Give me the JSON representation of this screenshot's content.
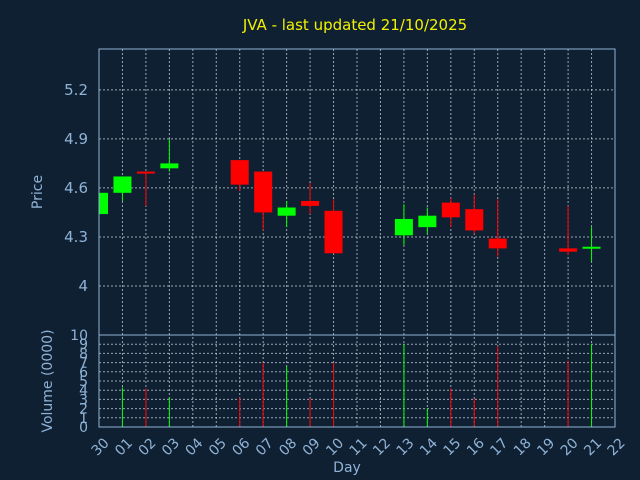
{
  "chart_data": {
    "type": "candlestick",
    "title": "JVA - last updated 21/10/2025",
    "xlabel": "Day",
    "ylabel": "Price",
    "volume_label": "Volume (0000)",
    "x_ticks": [
      "30",
      "01",
      "02",
      "03",
      "04",
      "05",
      "06",
      "07",
      "08",
      "09",
      "10",
      "11",
      "12",
      "13",
      "14",
      "15",
      "16",
      "17",
      "18",
      "19",
      "20",
      "21",
      "22"
    ],
    "price_ylim": [
      3.7,
      5.45
    ],
    "price_ticks": [
      "4",
      "4.3",
      "4.6",
      "4.9",
      "5.2"
    ],
    "volume_ylim": [
      0,
      10
    ],
    "volume_ticks": [
      "0",
      "1",
      "2",
      "3",
      "4",
      "5",
      "6",
      "7",
      "8",
      "9",
      "10"
    ],
    "up_color": "#00ff00",
    "down_color": "#ff0000",
    "grid": true,
    "candles": [
      {
        "day": "30",
        "open": 4.44,
        "close": 4.57,
        "high": 4.57,
        "low": 4.44,
        "volume": 0
      },
      {
        "day": "01",
        "open": 4.57,
        "close": 4.67,
        "high": 4.67,
        "low": 4.52,
        "volume": 4.3
      },
      {
        "day": "02",
        "open": 4.7,
        "close": 4.69,
        "high": 4.7,
        "low": 4.49,
        "volume": 4.2
      },
      {
        "day": "03",
        "open": 4.72,
        "close": 4.75,
        "high": 4.9,
        "low": 4.7,
        "volume": 3.2
      },
      {
        "day": "06",
        "open": 4.77,
        "close": 4.62,
        "high": 4.77,
        "low": 4.58,
        "volume": 3.2
      },
      {
        "day": "07",
        "open": 4.7,
        "close": 4.45,
        "high": 4.7,
        "low": 4.34,
        "volume": 7.0
      },
      {
        "day": "08",
        "open": 4.43,
        "close": 4.48,
        "high": 4.52,
        "low": 4.36,
        "volume": 6.6
      },
      {
        "day": "09",
        "open": 4.52,
        "close": 4.49,
        "high": 4.63,
        "low": 4.44,
        "volume": 3.1
      },
      {
        "day": "10",
        "open": 4.46,
        "close": 4.2,
        "high": 4.53,
        "low": 4.2,
        "volume": 7.0
      },
      {
        "day": "13",
        "open": 4.31,
        "close": 4.41,
        "high": 4.5,
        "low": 4.25,
        "volume": 9.0
      },
      {
        "day": "14",
        "open": 4.36,
        "close": 4.43,
        "high": 4.48,
        "low": 4.32,
        "volume": 2.0
      },
      {
        "day": "15",
        "open": 4.51,
        "close": 4.42,
        "high": 4.54,
        "low": 4.36,
        "volume": 4.2
      },
      {
        "day": "16",
        "open": 4.47,
        "close": 4.34,
        "high": 4.56,
        "low": 4.32,
        "volume": 3.1
      },
      {
        "day": "17",
        "open": 4.29,
        "close": 4.23,
        "high": 4.53,
        "low": 4.18,
        "volume": 8.8
      },
      {
        "day": "20",
        "open": 4.23,
        "close": 4.21,
        "high": 4.49,
        "low": 4.19,
        "volume": 7.2
      },
      {
        "day": "21",
        "open": 4.23,
        "close": 4.24,
        "high": 4.36,
        "low": 4.15,
        "volume": 9.0
      }
    ]
  }
}
